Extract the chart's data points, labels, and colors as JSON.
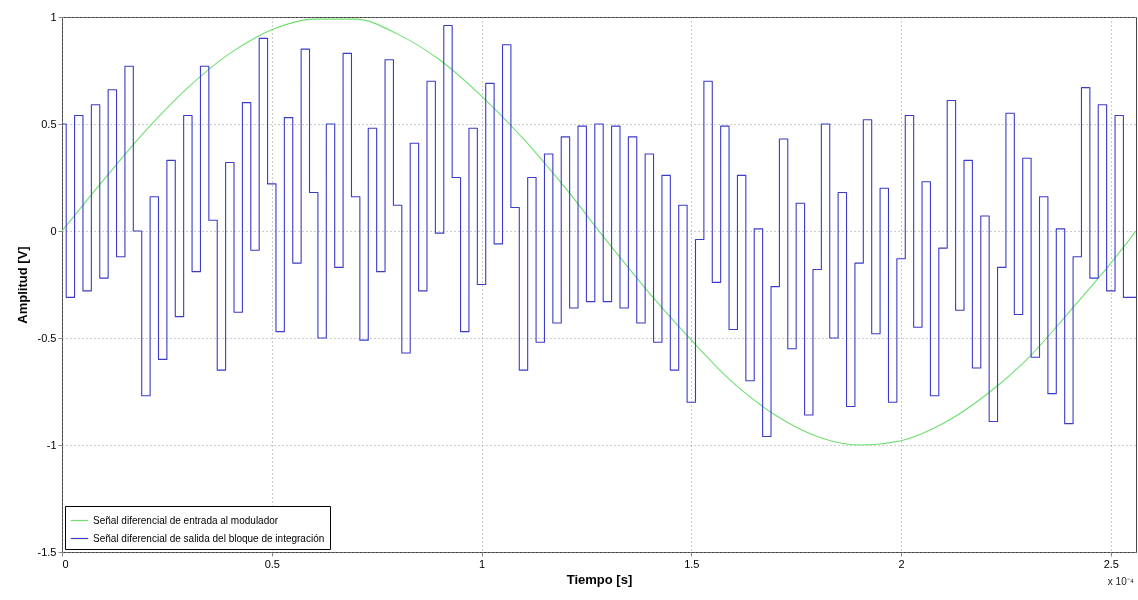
{
  "chart_data": {
    "type": "line",
    "xlabel": "Tiempo [s]",
    "ylabel": "Amplitud [V]",
    "annotations": [
      "x 10⁻⁴"
    ],
    "xlim": [
      0,
      2.56
    ],
    "xticks": [
      0,
      0.5,
      1,
      1.5,
      2,
      2.5
    ],
    "ylim": [
      -1.5,
      1
    ],
    "yticks": [
      -1.5,
      -1,
      -0.5,
      0,
      0.5,
      1
    ],
    "grid": true,
    "legend": "bottom left",
    "series": [
      {
        "name": "Señal diferencial de entrada al modulador",
        "color": "#6fe06f",
        "x": [
          0,
          0.1,
          0.2,
          0.3,
          0.4,
          0.5,
          0.6,
          0.7,
          0.8,
          0.9,
          1,
          1.1,
          1.2,
          1.3,
          1.4,
          1.5,
          1.6,
          1.7,
          1.8,
          1.9,
          2,
          2.1,
          2.2,
          2.3,
          2.4,
          2.5,
          2.56
        ],
        "values": [
          0,
          0.24,
          0.47,
          0.67,
          0.83,
          0.94,
          0.99,
          0.99,
          0.92,
          0.8,
          0.63,
          0.43,
          0.2,
          -0.05,
          -0.29,
          -0.51,
          -0.71,
          -0.86,
          -0.96,
          -1,
          -0.98,
          -0.9,
          -0.77,
          -0.6,
          -0.38,
          -0.15,
          0
        ]
      },
      {
        "name": "Señal diferencial de salida del bloque de integración",
        "type": "step",
        "color": "#3b3bc8",
        "x": [
          0,
          0.01,
          0.03,
          0.05,
          0.07,
          0.09,
          0.11,
          0.13,
          0.15,
          0.17,
          0.19,
          0.21,
          0.23,
          0.25,
          0.27,
          0.29,
          0.31,
          0.33,
          0.35,
          0.37,
          0.39,
          0.41,
          0.43,
          0.45,
          0.47,
          0.49,
          0.51,
          0.53,
          0.55,
          0.57,
          0.59,
          0.61,
          0.63,
          0.65,
          0.67,
          0.69,
          0.71,
          0.73,
          0.75,
          0.77,
          0.79,
          0.81,
          0.83,
          0.85,
          0.87,
          0.89,
          0.91,
          0.93,
          0.95,
          0.97,
          0.99,
          1.01,
          1.03,
          1.05,
          1.07,
          1.09,
          1.11,
          1.13,
          1.15,
          1.17,
          1.19,
          1.21,
          1.23,
          1.25,
          1.27,
          1.29,
          1.31,
          1.33,
          1.35,
          1.37,
          1.39,
          1.41,
          1.43,
          1.45,
          1.47,
          1.49,
          1.51,
          1.53,
          1.55,
          1.57,
          1.59,
          1.61,
          1.63,
          1.65,
          1.67,
          1.69,
          1.71,
          1.73,
          1.75,
          1.77,
          1.79,
          1.81,
          1.83,
          1.85,
          1.87,
          1.89,
          1.91,
          1.93,
          1.95,
          1.97,
          1.99,
          2.01,
          2.03,
          2.05,
          2.07,
          2.09,
          2.11,
          2.13,
          2.15,
          2.17,
          2.19,
          2.21,
          2.23,
          2.25,
          2.27,
          2.29,
          2.31,
          2.33,
          2.35,
          2.37,
          2.39,
          2.41,
          2.43,
          2.45,
          2.47,
          2.49,
          2.51,
          2.53,
          2.56
        ],
        "values": [
          0.5,
          -0.31,
          0.54,
          -0.28,
          0.59,
          -0.22,
          0.66,
          -0.12,
          0.77,
          0,
          -0.77,
          0.16,
          -0.6,
          0.33,
          -0.4,
          0.54,
          -0.19,
          0.77,
          0.05,
          -0.65,
          0.32,
          -0.38,
          0.6,
          -0.09,
          0.9,
          0.22,
          -0.47,
          0.53,
          -0.15,
          0.85,
          0.18,
          -0.5,
          0.5,
          -0.17,
          0.83,
          0.16,
          -0.51,
          0.48,
          -0.19,
          0.8,
          0.12,
          -0.57,
          0.41,
          -0.28,
          0.7,
          -0.01,
          0.96,
          0.25,
          -0.47,
          0.48,
          -0.25,
          0.69,
          -0.06,
          0.87,
          0.11,
          -0.65,
          0.25,
          -0.52,
          0.36,
          -0.43,
          0.44,
          -0.36,
          0.49,
          -0.33,
          0.5,
          -0.33,
          0.49,
          -0.36,
          0.44,
          -0.43,
          0.36,
          -0.52,
          0.26,
          -0.65,
          0.12,
          -0.8,
          -0.04,
          0.7,
          -0.24,
          0.49,
          -0.46,
          0.26,
          -0.7,
          0.01,
          -0.96,
          -0.26,
          0.43,
          -0.55,
          0.13,
          -0.86,
          -0.18,
          0.5,
          -0.5,
          0.18,
          -0.82,
          -0.15,
          0.52,
          -0.48,
          0.2,
          -0.8,
          -0.13,
          0.54,
          -0.45,
          0.23,
          -0.77,
          -0.08,
          0.61,
          -0.37,
          0.33,
          -0.64,
          0.07,
          -0.89,
          -0.17,
          0.55,
          -0.39,
          0.34,
          -0.59,
          0.16,
          -0.76,
          0.01,
          -0.9,
          -0.12,
          0.67,
          -0.22,
          0.59,
          -0.28,
          0.54,
          -0.31,
          -0.31
        ]
      }
    ]
  }
}
